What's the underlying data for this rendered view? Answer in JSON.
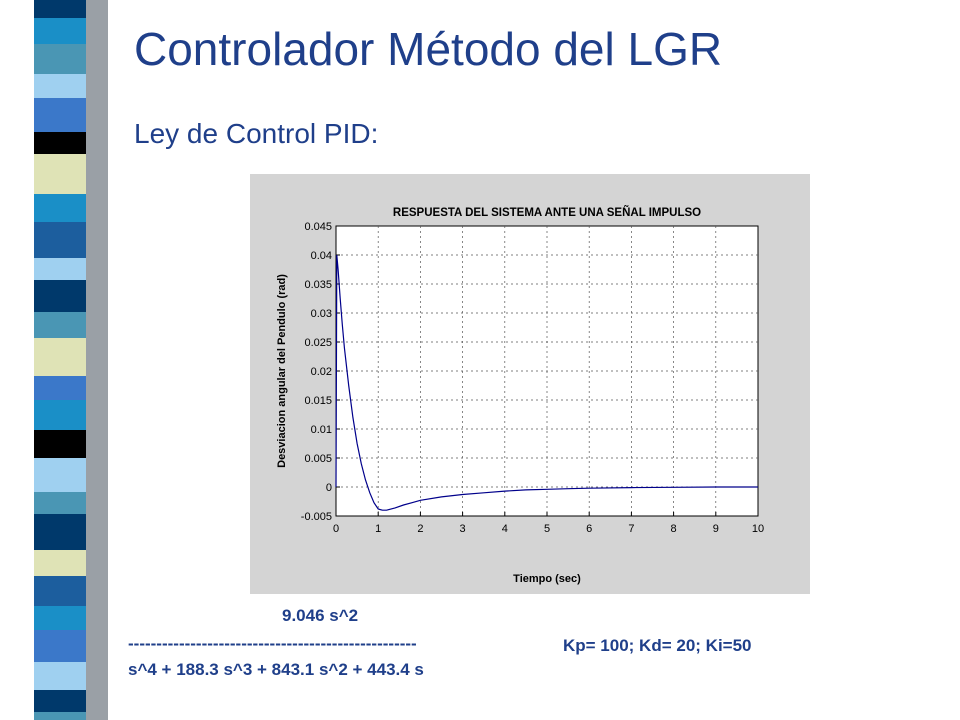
{
  "slide": {
    "title": "Controlador Método del LGR",
    "subtitle": "Ley de Control PID:"
  },
  "transfer_function": {
    "numerator": "9.046 s^2",
    "fraction_bar": "---------------------------------------------------",
    "denominator": "s^4 + 188.3 s^3 + 843.1 s^2 + 443.4 s"
  },
  "gains": "Kp= 100;  Kd= 20;  Ki=50",
  "colors": {
    "title": "#1f3f8a",
    "figure_background": "#d4d4d4",
    "plot_background": "#ffffff",
    "series_line": "#00008b",
    "stripe_palette": [
      "#00396b",
      "#1a8fc7",
      "#4a96b4",
      "#9fd0f0",
      "#3b78c9",
      "#000000",
      "#dfe3b6",
      "#1c5e9e"
    ]
  },
  "chart_data": {
    "type": "line",
    "title": "RESPUESTA DEL SISTEMA ANTE UNA SEÑAL IMPULSO",
    "xlabel": "Tiempo (sec)",
    "ylabel": "Desviacion angular del Pendulo (rad)",
    "xlim": [
      0,
      10
    ],
    "ylim": [
      -0.005,
      0.045
    ],
    "xticks": [
      "0",
      "1",
      "2",
      "3",
      "4",
      "5",
      "6",
      "7",
      "8",
      "9",
      "10"
    ],
    "yticks": [
      "-0.005",
      "0",
      "0.005",
      "0.01",
      "0.015",
      "0.02",
      "0.025",
      "0.03",
      "0.035",
      "0.04",
      "0.045"
    ],
    "grid": true,
    "series": [
      {
        "x": [
          0,
          0.02,
          0.05,
          0.1,
          0.15,
          0.2,
          0.3,
          0.4,
          0.5,
          0.6,
          0.7,
          0.8,
          0.9,
          1.0,
          1.1,
          1.2,
          1.4,
          1.6,
          1.8,
          2.0,
          2.5,
          3.0,
          3.5,
          4.0,
          4.5,
          5.0,
          5.5,
          6.0,
          7.0,
          8.0,
          9.0,
          10.0
        ],
        "y": [
          0,
          0.04,
          0.0375,
          0.0325,
          0.028,
          0.024,
          0.0175,
          0.012,
          0.0075,
          0.004,
          0.0012,
          -0.001,
          -0.0027,
          -0.0038,
          -0.004,
          -0.004,
          -0.0036,
          -0.0031,
          -0.0027,
          -0.0023,
          -0.0017,
          -0.0013,
          -0.001,
          -0.0007,
          -0.0005,
          -0.0004,
          -0.0003,
          -0.0002,
          -0.0001,
          -5e-05,
          0,
          0
        ]
      }
    ]
  }
}
